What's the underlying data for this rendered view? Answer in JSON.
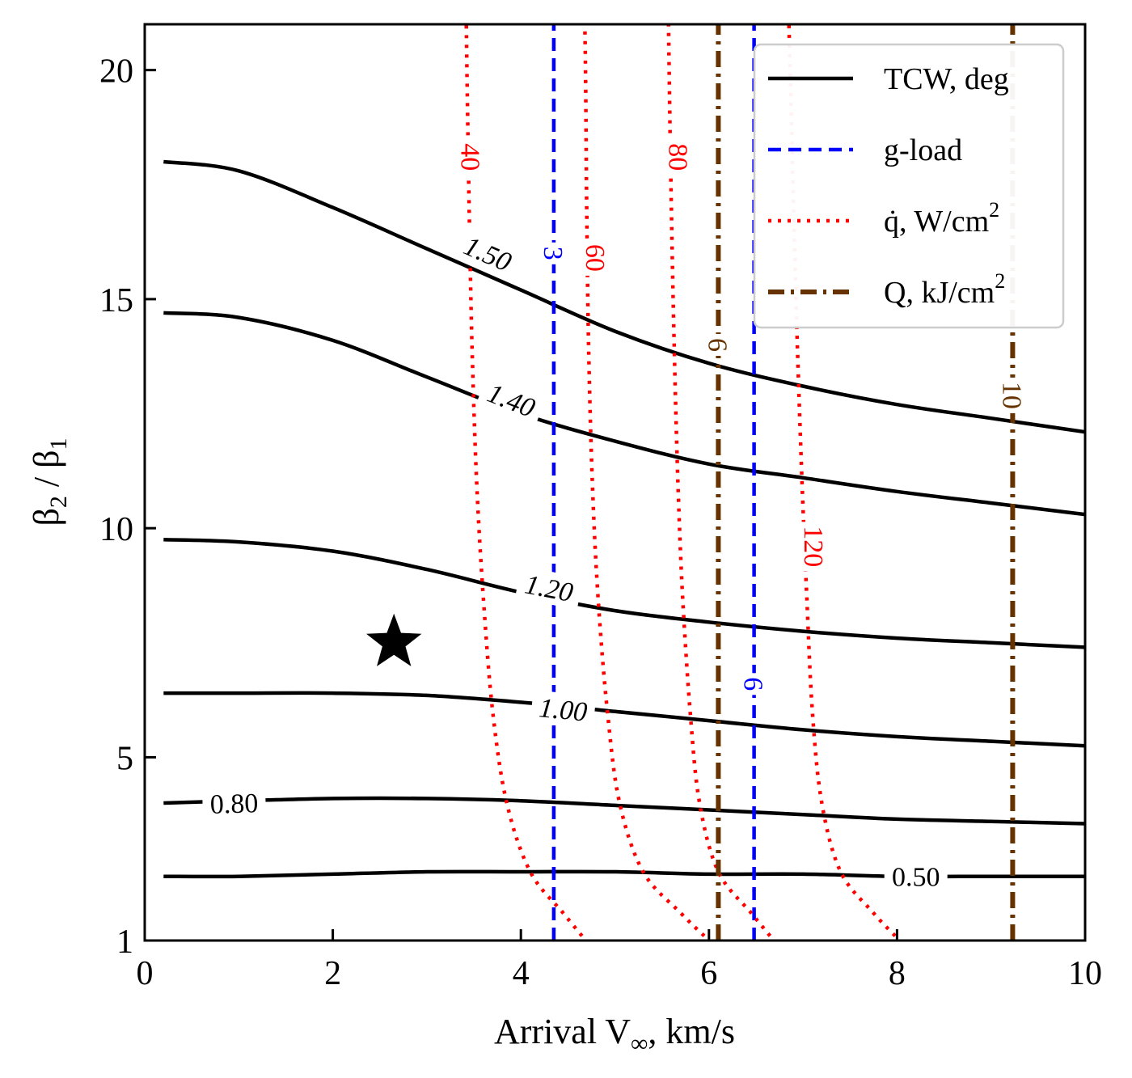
{
  "chart_data": {
    "type": "line",
    "xlabel": "Arrival V∞, km/s",
    "ylabel": "β2 / β1",
    "xlim": [
      0,
      10
    ],
    "ylim": [
      1,
      21
    ],
    "x_ticks": [
      0,
      2,
      4,
      6,
      8,
      10
    ],
    "y_ticks": [
      1,
      5,
      10,
      15,
      20
    ],
    "legend_position": "top-right",
    "legend": [
      {
        "label": "TCW, deg",
        "style": "solid",
        "color": "#000000"
      },
      {
        "label": "g-load",
        "style": "dashed",
        "color": "#0000ff"
      },
      {
        "label": "q̇, W/cm",
        "sup": "2",
        "style": "dotted",
        "color": "#ff0000"
      },
      {
        "label": "Q, kJ/cm",
        "sup": "2",
        "style": "dashdot",
        "color": "#663300"
      }
    ],
    "series": [
      {
        "group": "TCW",
        "label": "1.50",
        "label_at": [
          3.65,
          16.0
        ],
        "x": [
          0.2,
          1,
          2,
          3,
          4,
          5,
          6,
          7,
          8,
          9,
          10
        ],
        "y": [
          18.0,
          17.8,
          17.0,
          16.1,
          15.2,
          14.3,
          13.6,
          13.1,
          12.7,
          12.4,
          12.1
        ]
      },
      {
        "group": "TCW",
        "label": "1.40",
        "label_at": [
          3.9,
          12.8
        ],
        "x": [
          0.2,
          1,
          2,
          3,
          4,
          5,
          6,
          7,
          8,
          9,
          10
        ],
        "y": [
          14.7,
          14.6,
          14.1,
          13.3,
          12.5,
          11.9,
          11.4,
          11.1,
          10.8,
          10.55,
          10.3
        ]
      },
      {
        "group": "TCW",
        "label": "1.20",
        "label_at": [
          4.3,
          8.7
        ],
        "x": [
          0.2,
          1,
          2,
          3,
          4,
          5,
          6,
          7,
          8,
          9,
          10
        ],
        "y": [
          9.75,
          9.7,
          9.5,
          9.1,
          8.6,
          8.2,
          7.95,
          7.75,
          7.6,
          7.5,
          7.4
        ]
      },
      {
        "group": "TCW",
        "label": "1.00",
        "label_at": [
          4.45,
          6.05
        ],
        "x": [
          0.2,
          1,
          2,
          3,
          4,
          5,
          6,
          7,
          8,
          9,
          10
        ],
        "y": [
          6.4,
          6.4,
          6.4,
          6.35,
          6.2,
          6.0,
          5.8,
          5.6,
          5.45,
          5.35,
          5.25
        ]
      },
      {
        "group": "TCW",
        "label": "0.80",
        "label_at": [
          0.95,
          4.0
        ],
        "x": [
          0.2,
          1,
          2,
          3,
          4,
          5,
          6,
          7,
          8,
          9,
          10
        ],
        "y": [
          4.0,
          4.05,
          4.1,
          4.1,
          4.05,
          3.95,
          3.85,
          3.75,
          3.65,
          3.6,
          3.55
        ]
      },
      {
        "group": "TCW",
        "label": "0.50",
        "label_at": [
          8.2,
          2.4
        ],
        "x": [
          0.2,
          1,
          2,
          3,
          4,
          5,
          6,
          7,
          8,
          9,
          10
        ],
        "y": [
          2.4,
          2.4,
          2.45,
          2.5,
          2.5,
          2.5,
          2.45,
          2.45,
          2.4,
          2.4,
          2.4
        ]
      },
      {
        "group": "g-load",
        "label": "3",
        "label_at": [
          4.35,
          16.0
        ],
        "x": [
          4.35,
          4.35
        ],
        "y": [
          1,
          21
        ]
      },
      {
        "group": "g-load",
        "label": "6",
        "label_at": [
          6.48,
          6.6
        ],
        "x": [
          6.48,
          6.48
        ],
        "y": [
          1,
          21
        ]
      },
      {
        "group": "q",
        "label": "40",
        "label_at": [
          3.47,
          18.1
        ],
        "x": [
          4.65,
          4.45,
          4.1,
          3.85,
          3.7,
          3.6,
          3.53,
          3.48,
          3.45,
          3.43,
          3.42
        ],
        "y": [
          1.1,
          1.6,
          2.5,
          4.0,
          6.0,
          8.5,
          11.0,
          14.0,
          17.0,
          19.5,
          21.0
        ]
      },
      {
        "group": "q",
        "label": "60",
        "label_at": [
          4.8,
          15.9
        ],
        "x": [
          5.95,
          5.7,
          5.3,
          5.05,
          4.92,
          4.82,
          4.76,
          4.72,
          4.7,
          4.69,
          4.68
        ],
        "y": [
          1.1,
          1.6,
          2.5,
          4.0,
          6.0,
          8.5,
          11.0,
          14.0,
          17.0,
          19.5,
          21.0
        ]
      },
      {
        "group": "q",
        "label": "80",
        "label_at": [
          5.68,
          18.1
        ],
        "x": [
          6.65,
          6.45,
          6.1,
          5.9,
          5.8,
          5.72,
          5.67,
          5.63,
          5.6,
          5.58,
          5.57
        ],
        "y": [
          1.1,
          1.6,
          2.5,
          4.0,
          6.0,
          8.5,
          11.0,
          14.0,
          17.0,
          19.5,
          21.0
        ]
      },
      {
        "group": "q",
        "label": "120",
        "label_at": [
          7.12,
          9.6
        ],
        "x": [
          7.98,
          7.75,
          7.4,
          7.2,
          7.1,
          7.04,
          6.99,
          6.94,
          6.9,
          6.87,
          6.85
        ],
        "y": [
          1.1,
          1.6,
          2.5,
          4.0,
          6.0,
          8.5,
          11.0,
          14.0,
          17.0,
          19.5,
          21.0
        ]
      },
      {
        "group": "Q",
        "label": "6",
        "label_at": [
          6.1,
          14.0
        ],
        "x": [
          6.1,
          6.1
        ],
        "y": [
          1,
          21
        ]
      },
      {
        "group": "Q",
        "label": "10",
        "label_at": [
          9.23,
          12.9
        ],
        "x": [
          9.23,
          9.23
        ],
        "y": [
          1,
          21
        ]
      }
    ],
    "markers": [
      {
        "shape": "star",
        "x": 2.65,
        "y": 7.5,
        "color": "#000000"
      }
    ]
  }
}
